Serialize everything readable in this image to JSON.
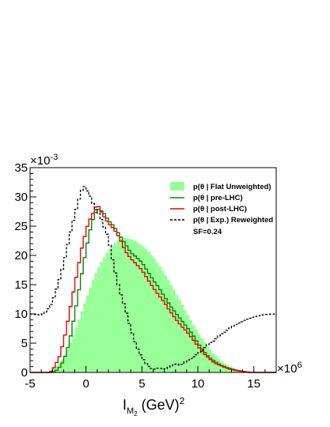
{
  "chart_data": {
    "type": "histogram",
    "x_exponent_label": "×10",
    "x_exponent_power": "6",
    "y_exponent_label": "×10",
    "y_exponent_power": "-3",
    "xlabel_main": "I",
    "xlabel_sub_M": "M",
    "xlabel_sub_2": "2",
    "xlabel_unit": " (GeV)",
    "xlabel_unit_power": "2",
    "xlim": [
      -5,
      17
    ],
    "ylim": [
      0,
      35
    ],
    "xticks": [
      -5,
      0,
      5,
      10,
      15
    ],
    "xtick_labels": [
      "-5",
      "0",
      "5",
      "10",
      "15"
    ],
    "yticks": [
      0,
      5,
      10,
      15,
      20,
      25,
      30,
      35
    ],
    "ytick_labels": [
      "0",
      "5",
      "10",
      "15",
      "20",
      "25",
      "30",
      "35"
    ],
    "bin_width": 0.25,
    "colors": {
      "flat_fill": "#99ff99",
      "pre_lhc": "#008800",
      "post_lhc": "#ee0000",
      "exp_reweighted": "#000000"
    },
    "legend": {
      "position": "top-right",
      "entries": [
        {
          "label": "p(θ | Flat Unweighted)",
          "style": "fill",
          "color": "#99ff99"
        },
        {
          "label": "p(θ | pre-LHC)",
          "style": "line",
          "color": "#008800"
        },
        {
          "label": "p(θ | post-LHC)",
          "style": "line",
          "color": "#ee0000"
        },
        {
          "label": "p(θ | Exp.) Reweighted",
          "style": "dashed",
          "color": "#000000"
        }
      ],
      "note": "SF=0.24"
    },
    "series": [
      {
        "name": "p(θ | Flat Unweighted)",
        "style": "filled-histogram",
        "points": [
          [
            -3.5,
            0
          ],
          [
            -3,
            0.5
          ],
          [
            -2.5,
            1.3
          ],
          [
            -2,
            2.5
          ],
          [
            -1.5,
            4.5
          ],
          [
            -1,
            7
          ],
          [
            -0.5,
            9.8
          ],
          [
            0,
            12.5
          ],
          [
            0.5,
            15.2
          ],
          [
            1,
            17.5
          ],
          [
            1.5,
            19.3
          ],
          [
            2,
            20.8
          ],
          [
            2.5,
            22
          ],
          [
            3,
            22.8
          ],
          [
            3.5,
            23
          ],
          [
            4,
            22.8
          ],
          [
            4.5,
            22.4
          ],
          [
            5,
            21.8
          ],
          [
            5.5,
            20.9
          ],
          [
            6,
            19.8
          ],
          [
            6.5,
            18.5
          ],
          [
            7,
            17
          ],
          [
            7.5,
            15.4
          ],
          [
            8,
            13.7
          ],
          [
            8.5,
            12
          ],
          [
            9,
            10.2
          ],
          [
            9.5,
            8.5
          ],
          [
            10,
            6.9
          ],
          [
            10.5,
            5.5
          ],
          [
            11,
            4.1
          ],
          [
            11.5,
            3
          ],
          [
            12,
            2.1
          ],
          [
            12.5,
            1.4
          ],
          [
            13,
            0.9
          ],
          [
            13.5,
            0.55
          ],
          [
            14,
            0.3
          ],
          [
            14.5,
            0.15
          ],
          [
            15,
            0.07
          ],
          [
            15.5,
            0.02
          ],
          [
            16,
            0
          ]
        ]
      },
      {
        "name": "p(θ | pre-LHC)",
        "style": "step",
        "points": [
          [
            -3,
            0
          ],
          [
            -2.5,
            0.5
          ],
          [
            -2,
            2
          ],
          [
            -1.5,
            5
          ],
          [
            -1,
            10
          ],
          [
            -0.5,
            15.5
          ],
          [
            0,
            21
          ],
          [
            0.5,
            25.5
          ],
          [
            1,
            28
          ],
          [
            1.5,
            27.5
          ],
          [
            2,
            26
          ],
          [
            2.5,
            25
          ],
          [
            3,
            23.5
          ],
          [
            3.5,
            22
          ],
          [
            4,
            20.5
          ],
          [
            4.5,
            19.7
          ],
          [
            5,
            18.8
          ],
          [
            5.5,
            17.3
          ],
          [
            6,
            15.8
          ],
          [
            6.5,
            14.5
          ],
          [
            7,
            13
          ],
          [
            7.5,
            11.5
          ],
          [
            8,
            10.2
          ],
          [
            8.5,
            9
          ],
          [
            9,
            7.8
          ],
          [
            9.5,
            6.6
          ],
          [
            10,
            5
          ],
          [
            10.5,
            3.7
          ],
          [
            11,
            2.6
          ],
          [
            11.5,
            1.9
          ],
          [
            12,
            1.3
          ],
          [
            12.5,
            0.9
          ],
          [
            13,
            0.6
          ],
          [
            13.5,
            0.35
          ],
          [
            14,
            0.2
          ],
          [
            14.5,
            0.08
          ],
          [
            15,
            0
          ]
        ]
      },
      {
        "name": "p(θ | post-LHC)",
        "style": "step",
        "points": [
          [
            -3.2,
            0
          ],
          [
            -2.8,
            1
          ],
          [
            -2.3,
            3
          ],
          [
            -1.8,
            7
          ],
          [
            -1.3,
            12
          ],
          [
            -0.8,
            17
          ],
          [
            -0.3,
            22
          ],
          [
            0.2,
            25.5
          ],
          [
            0.7,
            27.5
          ],
          [
            1,
            28.8
          ],
          [
            1.5,
            27
          ],
          [
            2,
            25.5
          ],
          [
            2.5,
            24.5
          ],
          [
            3,
            23
          ],
          [
            3.5,
            20.8
          ],
          [
            4,
            19.5
          ],
          [
            4.5,
            18.5
          ],
          [
            5,
            17.5
          ],
          [
            5.5,
            16
          ],
          [
            6,
            14.5
          ],
          [
            6.5,
            13.2
          ],
          [
            7,
            12
          ],
          [
            7.5,
            10.5
          ],
          [
            8,
            9.2
          ],
          [
            8.5,
            8
          ],
          [
            9,
            7
          ],
          [
            9.5,
            5.8
          ],
          [
            10,
            4.5
          ],
          [
            10.5,
            3.3
          ],
          [
            11,
            2.4
          ],
          [
            11.5,
            1.6
          ],
          [
            12,
            1.2
          ],
          [
            12.5,
            0.8
          ],
          [
            13,
            0.5
          ],
          [
            13.5,
            0.3
          ],
          [
            14,
            0.15
          ],
          [
            14.5,
            0
          ]
        ]
      },
      {
        "name": "p(θ | Exp.) Reweighted",
        "style": "dashed-step",
        "points": [
          [
            -5,
            10
          ],
          [
            -4,
            9.8
          ],
          [
            -3.5,
            10.5
          ],
          [
            -3,
            12
          ],
          [
            -2.5,
            15
          ],
          [
            -2,
            18.5
          ],
          [
            -1.5,
            23
          ],
          [
            -1,
            27
          ],
          [
            -0.5,
            30.5
          ],
          [
            -0.2,
            32
          ],
          [
            0.3,
            30.5
          ],
          [
            0.8,
            28
          ],
          [
            1.2,
            27
          ],
          [
            1.6,
            25
          ],
          [
            2,
            23
          ],
          [
            2.5,
            18
          ],
          [
            3,
            14
          ],
          [
            3.5,
            11
          ],
          [
            4,
            7.5
          ],
          [
            4.5,
            4.5
          ],
          [
            5,
            2.5
          ],
          [
            5.5,
            1.2
          ],
          [
            6,
            0.5
          ],
          [
            6.5,
            0.8
          ],
          [
            7,
            0.5
          ],
          [
            7.5,
            1
          ],
          [
            8,
            1.5
          ],
          [
            8.5,
            1.2
          ],
          [
            9,
            2
          ],
          [
            9.5,
            2.5
          ],
          [
            10,
            3.2
          ],
          [
            10.5,
            4
          ],
          [
            11,
            5
          ],
          [
            11.5,
            5.5
          ],
          [
            12,
            6.5
          ],
          [
            12.5,
            7
          ],
          [
            13,
            7.8
          ],
          [
            13.5,
            8.3
          ],
          [
            14,
            8.8
          ],
          [
            14.5,
            9.2
          ],
          [
            15,
            9.5
          ],
          [
            15.5,
            9.7
          ],
          [
            16,
            9.9
          ],
          [
            17,
            10
          ]
        ]
      }
    ]
  }
}
